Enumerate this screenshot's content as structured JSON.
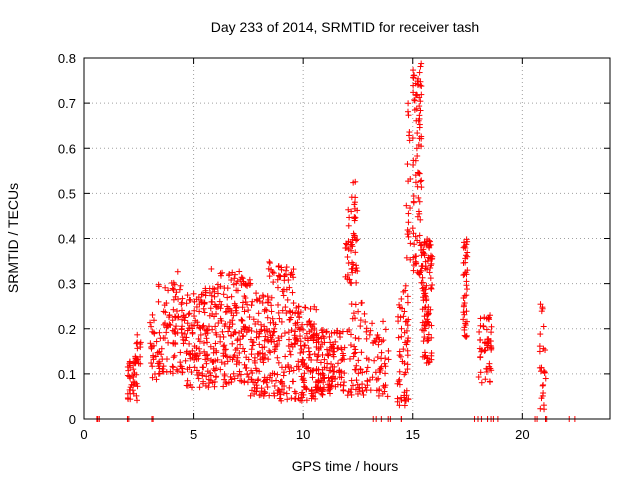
{
  "chart_data": {
    "type": "scatter",
    "title": "Day 233 of 2014, SRMTID for receiver tash",
    "xlabel": "GPS time / hours",
    "ylabel": "SRMTID / TECUs",
    "xlim": [
      0,
      24
    ],
    "ylim": [
      0,
      0.8
    ],
    "xticks": [
      0,
      5,
      10,
      15,
      20
    ],
    "xtick_labels": [
      "0",
      "5",
      "10",
      "15",
      "20"
    ],
    "yticks": [
      0,
      0.1,
      0.2,
      0.3,
      0.4,
      0.5,
      0.6,
      0.7,
      0.8
    ],
    "ytick_labels": [
      "0",
      "0.1",
      "0.2",
      "0.3",
      "0.4",
      "0.5",
      "0.6",
      "0.7",
      "0.8"
    ],
    "grid": true,
    "marker": "plus",
    "series_color": "#ff0000",
    "clusters": [
      {
        "x": [
          2.0,
          2.5
        ],
        "y": [
          0.04,
          0.14
        ],
        "n": 40
      },
      {
        "x": [
          2.3,
          2.6
        ],
        "y": [
          0.12,
          0.19
        ],
        "n": 14
      },
      {
        "x": [
          3.0,
          3.5
        ],
        "y": [
          0.08,
          0.24
        ],
        "n": 30
      },
      {
        "x": [
          3.4,
          4.6
        ],
        "y": [
          0.1,
          0.3
        ],
        "n": 90
      },
      {
        "x": [
          4.0,
          4.3
        ],
        "y": [
          0.26,
          0.33
        ],
        "n": 6
      },
      {
        "x": [
          4.6,
          5.5
        ],
        "y": [
          0.07,
          0.28
        ],
        "n": 90
      },
      {
        "x": [
          5.5,
          6.6
        ],
        "y": [
          0.07,
          0.3
        ],
        "n": 110
      },
      {
        "x": [
          5.8,
          6.3
        ],
        "y": [
          0.28,
          0.34
        ],
        "n": 8
      },
      {
        "x": [
          6.6,
          7.6
        ],
        "y": [
          0.08,
          0.33
        ],
        "n": 110
      },
      {
        "x": [
          7.6,
          8.6
        ],
        "y": [
          0.05,
          0.28
        ],
        "n": 110
      },
      {
        "x": [
          8.3,
          8.6
        ],
        "y": [
          0.3,
          0.36
        ],
        "n": 5
      },
      {
        "x": [
          8.6,
          9.6
        ],
        "y": [
          0.04,
          0.35
        ],
        "n": 110
      },
      {
        "x": [
          9.6,
          10.6
        ],
        "y": [
          0.04,
          0.25
        ],
        "n": 120
      },
      {
        "x": [
          10.6,
          11.4
        ],
        "y": [
          0.05,
          0.2
        ],
        "n": 100
      },
      {
        "x": [
          11.4,
          11.9
        ],
        "y": [
          0.06,
          0.2
        ],
        "n": 40
      },
      {
        "x": [
          11.9,
          12.5
        ],
        "y": [
          0.3,
          0.48
        ],
        "n": 50
      },
      {
        "x": [
          12.2,
          12.4
        ],
        "y": [
          0.48,
          0.53
        ],
        "n": 5
      },
      {
        "x": [
          12.0,
          12.8
        ],
        "y": [
          0.05,
          0.26
        ],
        "n": 50
      },
      {
        "x": [
          12.8,
          13.9
        ],
        "y": [
          0.05,
          0.22
        ],
        "n": 60
      },
      {
        "x": [
          14.3,
          14.8
        ],
        "y": [
          0.03,
          0.3
        ],
        "n": 60
      },
      {
        "x": [
          14.7,
          14.9
        ],
        "y": [
          0.35,
          0.72
        ],
        "n": 20
      },
      {
        "x": [
          15.0,
          15.4
        ],
        "y": [
          0.3,
          0.78
        ],
        "n": 80
      },
      {
        "x": [
          15.1,
          15.4
        ],
        "y": [
          0.7,
          0.79
        ],
        "n": 12
      },
      {
        "x": [
          15.4,
          15.9
        ],
        "y": [
          0.12,
          0.4
        ],
        "n": 100
      },
      {
        "x": [
          17.3,
          17.5
        ],
        "y": [
          0.18,
          0.4
        ],
        "n": 40
      },
      {
        "x": [
          18.0,
          18.6
        ],
        "y": [
          0.08,
          0.23
        ],
        "n": 50
      },
      {
        "x": [
          20.8,
          21.1
        ],
        "y": [
          0.02,
          0.26
        ],
        "n": 25
      },
      {
        "x": [
          0.4,
          0.8
        ],
        "y": [
          0,
          0
        ],
        "n": 4
      },
      {
        "x": [
          1.9,
          2.1
        ],
        "y": [
          0,
          0
        ],
        "n": 2
      },
      {
        "x": [
          3.1,
          3.2
        ],
        "y": [
          0,
          0
        ],
        "n": 2
      },
      {
        "x": [
          13.1,
          14.0
        ],
        "y": [
          0,
          0
        ],
        "n": 5
      },
      {
        "x": [
          14.4,
          14.6
        ],
        "y": [
          0,
          0
        ],
        "n": 2
      },
      {
        "x": [
          17.1,
          18.9
        ],
        "y": [
          0,
          0
        ],
        "n": 7
      },
      {
        "x": [
          20.2,
          21.2
        ],
        "y": [
          0,
          0
        ],
        "n": 4
      },
      {
        "x": [
          21.9,
          22.4
        ],
        "y": [
          0,
          0
        ],
        "n": 2
      }
    ]
  }
}
